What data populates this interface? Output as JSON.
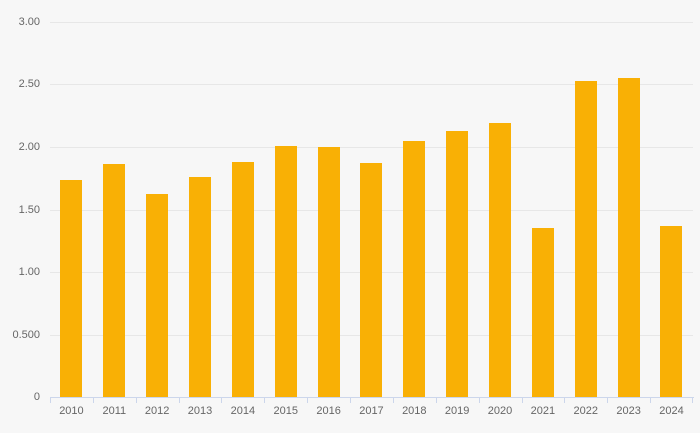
{
  "chart": {
    "background_color": "#f7f7f7",
    "bar_color": "#f9b005",
    "grid_color": "#e7e7e7",
    "axis_line_color": "#ccd6eb",
    "label_color": "#666666"
  },
  "chart_data": {
    "type": "bar",
    "title": "",
    "xlabel": "",
    "ylabel": "",
    "categories": [
      "2010",
      "2011",
      "2012",
      "2013",
      "2014",
      "2015",
      "2016",
      "2017",
      "2018",
      "2019",
      "2020",
      "2021",
      "2022",
      "2023",
      "2024"
    ],
    "values": [
      1.74,
      1.86,
      1.62,
      1.76,
      1.88,
      2.01,
      2.0,
      1.87,
      2.05,
      2.13,
      2.19,
      1.35,
      2.53,
      2.55,
      1.37
    ],
    "ylim": [
      0,
      3
    ],
    "ytick_interval": 0.5,
    "yticks": [
      {
        "value": 0,
        "label": "0"
      },
      {
        "value": 0.5,
        "label": "0.500"
      },
      {
        "value": 1,
        "label": "1.00"
      },
      {
        "value": 1.5,
        "label": "1.50"
      },
      {
        "value": 2,
        "label": "2.00"
      },
      {
        "value": 2.5,
        "label": "2.50"
      },
      {
        "value": 3,
        "label": "3.00"
      }
    ],
    "grid": "horizontal",
    "legend": "none"
  }
}
